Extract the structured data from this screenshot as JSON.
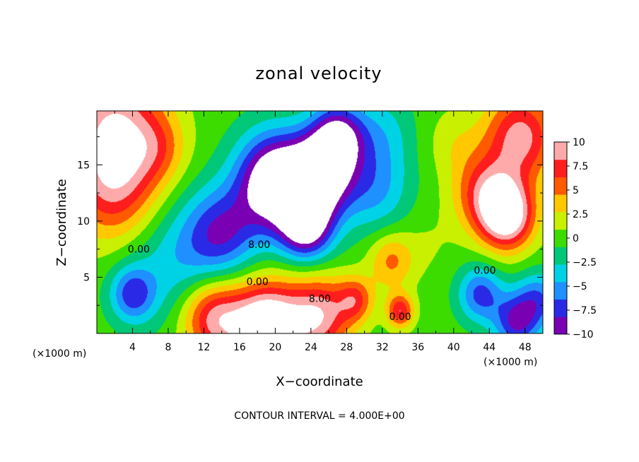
{
  "chart_data": {
    "type": "heatmap",
    "title": "zonal velocity",
    "xlabel": "X−coordinate",
    "ylabel": "Z−coordinate",
    "x_unit_left": "(×1000 m)",
    "x_unit_right": "(×1000 m)",
    "xlim": [
      0,
      50
    ],
    "ylim": [
      0,
      19.8
    ],
    "x_ticks": [
      4,
      8,
      12,
      16,
      20,
      24,
      28,
      32,
      36,
      40,
      44,
      48
    ],
    "x_tick_labels": [
      "4",
      "8",
      "12",
      "16",
      "20",
      "24",
      "28",
      "32",
      "36",
      "40",
      "44",
      "48"
    ],
    "y_ticks": [
      5,
      10,
      15
    ],
    "y_tick_labels": [
      "5",
      "10",
      "15"
    ],
    "colorbar": {
      "min": -10,
      "max": 10,
      "ticks": [
        10,
        7.5,
        5,
        2.5,
        0,
        -2.5,
        -5,
        -7.5,
        -10
      ],
      "tick_labels": [
        "10",
        "7.5",
        "5",
        "2.5",
        "0",
        "−2.5",
        "−5",
        "−7.5",
        "−10"
      ],
      "colors": [
        "#7a00b4",
        "#2a2ae6",
        "#1e90ff",
        "#00d2e6",
        "#00c878",
        "#3cdc00",
        "#c8f000",
        "#ffc800",
        "#ff5a00",
        "#ff1e1e",
        "#ffaaaa"
      ]
    },
    "contour_labels": [
      {
        "text": "0.00",
        "x": 4.7,
        "z": 7.2
      },
      {
        "text": "8.00",
        "x": 18.2,
        "z": 7.6
      },
      {
        "text": "0.00",
        "x": 18.0,
        "z": 4.3
      },
      {
        "text": "8.00",
        "x": 25.0,
        "z": 2.8
      },
      {
        "text": "0.00",
        "x": 34.0,
        "z": 1.2
      },
      {
        "text": "0.00",
        "x": 43.5,
        "z": 5.3
      }
    ],
    "footer": "CONTOUR INTERVAL = 4.000E+00",
    "features": [
      {
        "x": 2.0,
        "z": 18.5,
        "r": 5.5,
        "v": 9
      },
      {
        "x": 2.0,
        "z": 13.0,
        "r": 5.0,
        "v": 7
      },
      {
        "x": 7.0,
        "z": 16.5,
        "r": 3.0,
        "v": 3
      },
      {
        "x": 46.0,
        "z": 10.5,
        "r": 3.0,
        "v": 12
      },
      {
        "x": 47.5,
        "z": 17.5,
        "r": 4.0,
        "v": 9
      },
      {
        "x": 43.5,
        "z": 12.5,
        "r": 3.5,
        "v": 7
      },
      {
        "x": 20.0,
        "z": 13.5,
        "r": 4.3,
        "v": -14
      },
      {
        "x": 25.0,
        "z": 14.0,
        "r": 3.5,
        "v": -12
      },
      {
        "x": 23.5,
        "z": 9.5,
        "r": 3.0,
        "v": -11
      },
      {
        "x": 27.0,
        "z": 17.5,
        "r": 3.0,
        "v": -10
      },
      {
        "x": 14.0,
        "z": 9.0,
        "r": 4.0,
        "v": -7
      },
      {
        "x": 31.0,
        "z": 13.0,
        "r": 4.0,
        "v": -5
      },
      {
        "x": 32.0,
        "z": 18.0,
        "r": 3.5,
        "v": -3
      },
      {
        "x": 4.0,
        "z": 3.5,
        "r": 2.5,
        "v": -7
      },
      {
        "x": 9.0,
        "z": 6.5,
        "r": 5.5,
        "v": -4
      },
      {
        "x": 22.0,
        "z": 6.0,
        "r": 3.0,
        "v": 0
      },
      {
        "x": 19.0,
        "z": 0.5,
        "r": 4.0,
        "v": 14
      },
      {
        "x": 13.0,
        "z": 1.5,
        "r": 3.5,
        "v": 9
      },
      {
        "x": 25.0,
        "z": 1.6,
        "r": 3.5,
        "v": 9
      },
      {
        "x": 29.0,
        "z": 3.0,
        "r": 2.0,
        "v": 6
      },
      {
        "x": 33.0,
        "z": 6.5,
        "r": 2.5,
        "v": 5
      },
      {
        "x": 34.0,
        "z": 2.0,
        "r": 1.5,
        "v": 8
      },
      {
        "x": 37.0,
        "z": 8.0,
        "r": 3.0,
        "v": 1
      },
      {
        "x": 43.0,
        "z": 3.5,
        "r": 2.5,
        "v": -7
      },
      {
        "x": 47.0,
        "z": 1.0,
        "r": 2.5,
        "v": -8
      },
      {
        "x": 49.5,
        "z": 3.0,
        "r": 2.5,
        "v": -6
      },
      {
        "x": 40.0,
        "z": 17.0,
        "r": 3.0,
        "v": 2
      },
      {
        "x": 38.0,
        "z": 13.0,
        "r": 3.0,
        "v": 0
      }
    ]
  }
}
